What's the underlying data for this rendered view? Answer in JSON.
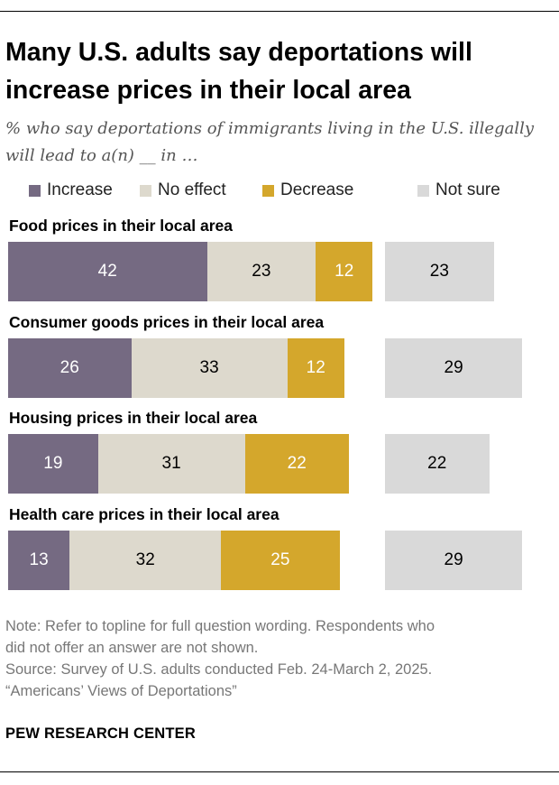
{
  "title": "Many U.S. adults say deportations will increase prices in their local area",
  "subtitle": "% who say deportations of immigrants living in the U.S. illegally will lead to a(n) __ in …",
  "colors": {
    "increase": "#756a82",
    "no_effect": "#ddd9cd",
    "decrease": "#d4a72c",
    "not_sure": "#d9d9d9"
  },
  "note_lines": [
    "Note: Refer to topline for full question wording. Respondents who",
    "did not offer an answer are not shown.",
    "Source: Survey of U.S. adults conducted Feb. 24-March 2, 2025.",
    "“Americans’ Views of Deportations”"
  ],
  "source_org": "PEW RESEARCH CENTER",
  "chart_data": {
    "type": "bar",
    "orientation": "horizontal",
    "stacked": true,
    "legend_placement": "top",
    "categories": [
      "Food prices in their local area",
      "Consumer goods prices in their local area",
      "Housing prices in their local area",
      "Health care prices in their local area"
    ],
    "series": [
      {
        "name": "Increase",
        "color": "#756a82",
        "text_color": "#ffffff",
        "values": [
          42,
          26,
          19,
          13
        ]
      },
      {
        "name": "No effect",
        "color": "#ddd9cd",
        "text_color": "#000000",
        "values": [
          23,
          33,
          31,
          32
        ]
      },
      {
        "name": "Decrease",
        "color": "#d4a72c",
        "text_color": "#ffffff",
        "values": [
          12,
          12,
          22,
          25
        ]
      },
      {
        "name": "Not sure",
        "color": "#d9d9d9",
        "text_color": "#000000",
        "values": [
          23,
          29,
          22,
          29
        ],
        "separate": true
      }
    ]
  }
}
